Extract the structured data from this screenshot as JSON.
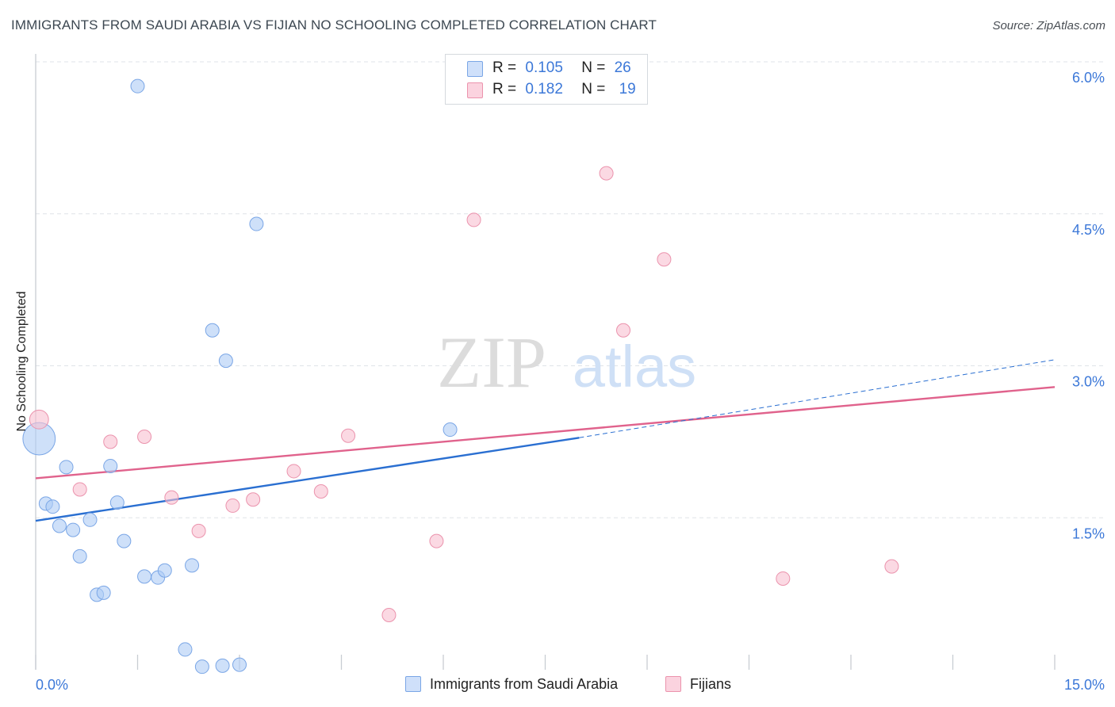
{
  "header": {
    "title": "IMMIGRANTS FROM SAUDI ARABIA VS FIJIAN NO SCHOOLING COMPLETED CORRELATION CHART",
    "source": "Source: ZipAtlas.com"
  },
  "watermark": {
    "zip": "ZIP",
    "atlas": "atlas"
  },
  "legend_top": [
    {
      "r_label": "R =",
      "r_value": "0.105",
      "n_label": "N =",
      "n_value": "26",
      "color": "#aecbf5"
    },
    {
      "r_label": "R =",
      "r_value": "0.182",
      "n_label": "N =",
      "n_value": "19",
      "color": "#f8bfd0"
    }
  ],
  "legend_bottom": [
    {
      "label": "Immigrants from Saudi Arabia",
      "color": "#aecbf5"
    },
    {
      "label": "Fijians",
      "color": "#f8bfd0"
    }
  ],
  "chart_data": {
    "type": "scatter",
    "title": "IMMIGRANTS FROM SAUDI ARABIA VS FIJIAN NO SCHOOLING COMPLETED CORRELATION CHART",
    "ylabel": "No Schooling Completed",
    "xlabel": "",
    "xlim": [
      0,
      15
    ],
    "ylim": [
      0,
      6.2
    ],
    "x_tick_labels": [
      "0.0%",
      "15.0%"
    ],
    "y_tick_labels": [
      "1.5%",
      "3.0%",
      "4.5%",
      "6.0%"
    ],
    "y_ticks": [
      1.5,
      3.0,
      4.5,
      6.0
    ],
    "grid": true,
    "series": [
      {
        "name": "Immigrants from Saudi Arabia",
        "color": "#aecbf5",
        "stroke": "#7aa6e6",
        "line_color": "#2a6fd1",
        "points": [
          [
            0.05,
            2.28,
            2.4
          ],
          [
            0.15,
            1.64,
            1
          ],
          [
            0.25,
            1.61,
            1
          ],
          [
            0.35,
            1.42,
            1
          ],
          [
            0.45,
            2.0,
            1
          ],
          [
            0.55,
            1.38,
            1
          ],
          [
            0.65,
            1.12,
            1
          ],
          [
            0.8,
            1.48,
            1
          ],
          [
            0.9,
            0.74,
            1
          ],
          [
            1.0,
            0.76,
            1
          ],
          [
            1.1,
            2.01,
            1
          ],
          [
            1.2,
            1.65,
            1
          ],
          [
            1.3,
            1.27,
            1
          ],
          [
            1.5,
            5.76,
            1
          ],
          [
            1.6,
            0.92,
            1
          ],
          [
            1.8,
            0.91,
            1
          ],
          [
            1.9,
            0.98,
            1
          ],
          [
            2.2,
            0.2,
            1
          ],
          [
            2.3,
            1.03,
            1
          ],
          [
            2.45,
            0.03,
            1
          ],
          [
            2.6,
            3.35,
            1
          ],
          [
            2.75,
            0.04,
            1
          ],
          [
            2.8,
            3.05,
            1
          ],
          [
            3.0,
            0.05,
            1
          ],
          [
            3.25,
            4.4,
            1
          ],
          [
            6.1,
            2.37,
            1
          ]
        ],
        "trend": {
          "x0": 0,
          "y0": 1.47,
          "x1": 8.0,
          "y1": 2.29,
          "dash_to_x": 15,
          "dash_to_y": 3.06
        }
      },
      {
        "name": "Fijians",
        "color": "#f8bfd0",
        "stroke": "#eb93ad",
        "line_color": "#e0628c",
        "points": [
          [
            0.05,
            2.47,
            1.4
          ],
          [
            0.65,
            1.78,
            1
          ],
          [
            1.1,
            2.25,
            1
          ],
          [
            1.6,
            2.3,
            1
          ],
          [
            2.0,
            1.7,
            1
          ],
          [
            2.4,
            1.37,
            1
          ],
          [
            2.9,
            1.62,
            1
          ],
          [
            3.2,
            1.68,
            1
          ],
          [
            3.8,
            1.96,
            1
          ],
          [
            4.2,
            1.76,
            1
          ],
          [
            4.6,
            2.31,
            1
          ],
          [
            5.2,
            0.54,
            1
          ],
          [
            5.9,
            1.27,
            1
          ],
          [
            6.45,
            4.44,
            1
          ],
          [
            8.4,
            4.9,
            1
          ],
          [
            8.65,
            3.35,
            1
          ],
          [
            9.25,
            4.05,
            1
          ],
          [
            11.0,
            0.9,
            1
          ],
          [
            12.6,
            1.02,
            1
          ]
        ],
        "trend": {
          "x0": 0,
          "y0": 1.89,
          "x1": 15,
          "y1": 2.79
        }
      }
    ]
  }
}
